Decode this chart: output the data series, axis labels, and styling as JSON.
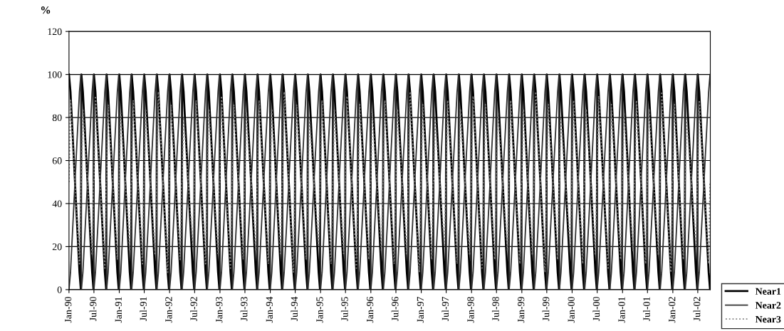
{
  "chart_data": {
    "type": "line",
    "ylabel": "%",
    "x": [
      "1990-01-01",
      "1990-01-12",
      "1990-03-18",
      "1990-03-28",
      "1990-04-01",
      "1990-04-12",
      "1990-06-18",
      "1990-06-28",
      "1990-07-01",
      "1990-07-12",
      "1990-09-18",
      "1990-09-28",
      "1990-10-01",
      "1990-10-12",
      "1990-12-18",
      "1990-12-28",
      "1991-01-01",
      "1991-01-12",
      "1991-03-18",
      "1991-03-28",
      "1991-04-01",
      "1991-04-12",
      "1991-06-18",
      "1991-06-28",
      "1991-07-01",
      "1991-07-12",
      "1991-09-18",
      "1991-09-28",
      "1991-10-01",
      "1991-10-12",
      "1991-12-18",
      "1991-12-28",
      "1992-01-01",
      "1992-01-12",
      "1992-03-18",
      "1992-03-28",
      "1992-04-01",
      "1992-04-12",
      "1992-06-18",
      "1992-06-28",
      "1992-07-01",
      "1992-07-12",
      "1992-09-18",
      "1992-09-28",
      "1992-10-01",
      "1992-10-12",
      "1992-12-18",
      "1992-12-28",
      "1993-01-01",
      "1993-01-12",
      "1993-03-18",
      "1993-03-28",
      "1993-04-01",
      "1993-04-12",
      "1993-06-18",
      "1993-06-28",
      "1993-07-01",
      "1993-07-12",
      "1993-09-18",
      "1993-09-28",
      "1993-10-01",
      "1993-10-12",
      "1993-12-18",
      "1993-12-28",
      "1994-01-01",
      "1994-01-12",
      "1994-03-18",
      "1994-03-28",
      "1994-04-01",
      "1994-04-12",
      "1994-06-18",
      "1994-06-28",
      "1994-07-01",
      "1994-07-12",
      "1994-09-18",
      "1994-09-28",
      "1994-10-01",
      "1994-10-12",
      "1994-12-18",
      "1994-12-28",
      "1995-01-01",
      "1995-01-12",
      "1995-03-18",
      "1995-03-28",
      "1995-04-01",
      "1995-04-12",
      "1995-06-18",
      "1995-06-28",
      "1995-07-01",
      "1995-07-12",
      "1995-09-18",
      "1995-09-28",
      "1995-10-01",
      "1995-10-12",
      "1995-12-18",
      "1995-12-28",
      "1996-01-01",
      "1996-01-12",
      "1996-03-18",
      "1996-03-28",
      "1996-04-01",
      "1996-04-12",
      "1996-06-18",
      "1996-06-28",
      "1996-07-01",
      "1996-07-12",
      "1996-09-18",
      "1996-09-28",
      "1996-10-01",
      "1996-10-12",
      "1996-12-18",
      "1996-12-28",
      "1997-01-01",
      "1997-01-12",
      "1997-03-18",
      "1997-03-28",
      "1997-04-01",
      "1997-04-12",
      "1997-06-18",
      "1997-06-28",
      "1997-07-01",
      "1997-07-12",
      "1997-09-18",
      "1997-09-28",
      "1997-10-01",
      "1997-10-12",
      "1997-12-18",
      "1997-12-28",
      "1998-01-01",
      "1998-01-12",
      "1998-03-18",
      "1998-03-28",
      "1998-04-01",
      "1998-04-12",
      "1998-06-18",
      "1998-06-28",
      "1998-07-01",
      "1998-07-12",
      "1998-09-18",
      "1998-09-28",
      "1998-10-01",
      "1998-10-12",
      "1998-12-18",
      "1998-12-28",
      "1999-01-01",
      "1999-01-12",
      "1999-03-18",
      "1999-03-28",
      "1999-04-01",
      "1999-04-12",
      "1999-06-18",
      "1999-06-28",
      "1999-07-01",
      "1999-07-12",
      "1999-09-18",
      "1999-09-28",
      "1999-10-01",
      "1999-10-12",
      "1999-12-18",
      "1999-12-28",
      "2000-01-01",
      "2000-01-12",
      "2000-03-18",
      "2000-03-28",
      "2000-04-01",
      "2000-04-12",
      "2000-06-18",
      "2000-06-28",
      "2000-07-01",
      "2000-07-12",
      "2000-09-18",
      "2000-09-28",
      "2000-10-01",
      "2000-10-12",
      "2000-12-18",
      "2000-12-28",
      "2001-01-01",
      "2001-01-12",
      "2001-03-18",
      "2001-03-28",
      "2001-04-01",
      "2001-04-12",
      "2001-06-18",
      "2001-06-28",
      "2001-07-01",
      "2001-07-12",
      "2001-09-18",
      "2001-09-28",
      "2001-10-01",
      "2001-10-12",
      "2001-12-18",
      "2001-12-28",
      "2002-01-01",
      "2002-01-12",
      "2002-03-18",
      "2002-03-28",
      "2002-04-01",
      "2002-04-12",
      "2002-06-18",
      "2002-06-28",
      "2002-07-01",
      "2002-07-12",
      "2002-09-18",
      "2002-09-28"
    ],
    "series": [
      {
        "name": "Near1",
        "color": "#000000",
        "line_style": "solid",
        "values": [
          100,
          92,
          8,
          0,
          100,
          92,
          8,
          0,
          100,
          92,
          8,
          0,
          100,
          92,
          8,
          0,
          100,
          92,
          8,
          0,
          100,
          92,
          8,
          0,
          100,
          92,
          8,
          0,
          100,
          92,
          8,
          0,
          100,
          92,
          8,
          0,
          100,
          92,
          8,
          0,
          100,
          92,
          8,
          0,
          100,
          92,
          8,
          0,
          100,
          92,
          8,
          0,
          100,
          92,
          8,
          0,
          100,
          92,
          8,
          0,
          100,
          92,
          8,
          0,
          100,
          92,
          8,
          0,
          100,
          92,
          8,
          0,
          100,
          92,
          8,
          0,
          100,
          92,
          8,
          0,
          100,
          92,
          8,
          0,
          100,
          92,
          8,
          0,
          100,
          92,
          8,
          0,
          100,
          92,
          8,
          0,
          100,
          92,
          8,
          0,
          100,
          92,
          8,
          0,
          100,
          92,
          8,
          0,
          100,
          92,
          8,
          0,
          100,
          92,
          8,
          0,
          100,
          92,
          8,
          0,
          100,
          92,
          8,
          0,
          100,
          92,
          8,
          0,
          100,
          92,
          8,
          0,
          100,
          92,
          8,
          0,
          100,
          92,
          8,
          0,
          100,
          92,
          8,
          0,
          100,
          92,
          8,
          0,
          100,
          92,
          8,
          0,
          100,
          92,
          8,
          0,
          100,
          92,
          8,
          0,
          100,
          92,
          8,
          0,
          100,
          92,
          8,
          0,
          100,
          92,
          8,
          0,
          100,
          92,
          8,
          0,
          100,
          92,
          8,
          0,
          100,
          92,
          8,
          0,
          100,
          92,
          8,
          0,
          100,
          92,
          8,
          0,
          100,
          92,
          8,
          0,
          100,
          92,
          8,
          0,
          100,
          92,
          8,
          0
        ]
      },
      {
        "name": "Near2",
        "color": "#303030",
        "line_style": "solid",
        "values": [
          0,
          8,
          92,
          100,
          0,
          8,
          92,
          100,
          0,
          8,
          92,
          100,
          0,
          8,
          92,
          100,
          0,
          8,
          92,
          100,
          0,
          8,
          92,
          100,
          0,
          8,
          92,
          100,
          0,
          8,
          92,
          100,
          0,
          8,
          92,
          100,
          0,
          8,
          92,
          100,
          0,
          8,
          92,
          100,
          0,
          8,
          92,
          100,
          0,
          8,
          92,
          100,
          0,
          8,
          92,
          100,
          0,
          8,
          92,
          100,
          0,
          8,
          92,
          100,
          0,
          8,
          92,
          100,
          0,
          8,
          92,
          100,
          0,
          8,
          92,
          100,
          0,
          8,
          92,
          100,
          0,
          8,
          92,
          100,
          0,
          8,
          92,
          100,
          0,
          8,
          92,
          100,
          0,
          8,
          92,
          100,
          0,
          8,
          92,
          100,
          0,
          8,
          92,
          100,
          0,
          8,
          92,
          100,
          0,
          8,
          92,
          100,
          0,
          8,
          92,
          100,
          0,
          8,
          92,
          100,
          0,
          8,
          92,
          100,
          0,
          8,
          92,
          100,
          0,
          8,
          92,
          100,
          0,
          8,
          92,
          100,
          0,
          8,
          92,
          100,
          0,
          8,
          92,
          100,
          0,
          8,
          92,
          100,
          0,
          8,
          92,
          100,
          0,
          8,
          92,
          100,
          0,
          8,
          92,
          100,
          0,
          8,
          92,
          100,
          0,
          8,
          92,
          100,
          0,
          8,
          92,
          100,
          0,
          8,
          92,
          100,
          0,
          8,
          92,
          100,
          0,
          8,
          92,
          100,
          0,
          8,
          92,
          100,
          0,
          8,
          92,
          100,
          0,
          8,
          92,
          100,
          0,
          8,
          92,
          100,
          0,
          8,
          92,
          100
        ]
      },
      {
        "name": "Near3",
        "color": "#808080",
        "line_style": "dotted",
        "values": [
          50,
          88,
          12,
          50,
          50,
          84,
          16,
          50,
          50,
          90,
          10,
          50,
          50,
          86,
          14,
          50,
          50,
          82,
          18,
          50,
          50,
          88,
          12,
          50,
          50,
          84,
          16,
          50,
          50,
          92,
          8,
          50,
          50,
          86,
          14,
          50,
          50,
          80,
          20,
          50,
          50,
          88,
          12,
          50,
          50,
          84,
          16,
          50,
          50,
          90,
          10,
          50,
          50,
          86,
          14,
          50,
          50,
          82,
          18,
          50,
          50,
          88,
          12,
          50,
          50,
          84,
          16,
          50,
          50,
          92,
          8,
          50,
          50,
          86,
          14,
          50,
          50,
          80,
          20,
          50,
          50,
          88,
          12,
          50,
          50,
          84,
          16,
          50,
          50,
          90,
          10,
          50,
          50,
          86,
          14,
          50,
          50,
          82,
          18,
          50,
          50,
          88,
          12,
          50,
          50,
          84,
          16,
          50,
          50,
          92,
          8,
          50,
          50,
          86,
          14,
          50,
          50,
          80,
          20,
          50,
          50,
          88,
          12,
          50,
          50,
          84,
          16,
          50,
          50,
          90,
          10,
          50,
          50,
          86,
          14,
          50,
          50,
          82,
          18,
          50,
          50,
          88,
          12,
          50,
          50,
          84,
          16,
          50,
          50,
          92,
          8,
          50,
          50,
          86,
          14,
          50,
          50,
          80,
          20,
          50,
          50,
          88,
          12,
          50,
          50,
          84,
          16,
          50,
          50,
          90,
          10,
          50,
          50,
          86,
          14,
          50,
          50,
          82,
          18,
          50,
          50,
          88,
          12,
          50,
          50,
          84,
          16,
          50,
          50,
          92,
          8,
          50,
          50,
          86,
          14,
          50,
          50,
          80,
          20,
          50,
          50,
          88,
          12,
          50
        ]
      }
    ],
    "xlim": [
      "1990-01-01",
      "2002-09-30"
    ],
    "xticks": [
      {
        "value": "1990-01-01",
        "label": "Jan-90"
      },
      {
        "value": "1990-07-01",
        "label": "Jul-90"
      },
      {
        "value": "1991-01-01",
        "label": "Jan-91"
      },
      {
        "value": "1991-07-01",
        "label": "Jul-91"
      },
      {
        "value": "1992-01-01",
        "label": "Jan-92"
      },
      {
        "value": "1992-07-01",
        "label": "Jul-92"
      },
      {
        "value": "1993-01-01",
        "label": "Jan-93"
      },
      {
        "value": "1993-07-01",
        "label": "Jul-93"
      },
      {
        "value": "1994-01-01",
        "label": "Jan-94"
      },
      {
        "value": "1994-07-01",
        "label": "Jul-94"
      },
      {
        "value": "1995-01-01",
        "label": "Jan-95"
      },
      {
        "value": "1995-07-01",
        "label": "Jul-95"
      },
      {
        "value": "1996-01-01",
        "label": "Jan-96"
      },
      {
        "value": "1996-07-01",
        "label": "Jul-96"
      },
      {
        "value": "1997-01-01",
        "label": "Jan-97"
      },
      {
        "value": "1997-07-01",
        "label": "Jul-97"
      },
      {
        "value": "1998-01-01",
        "label": "Jan-98"
      },
      {
        "value": "1998-07-01",
        "label": "Jul-98"
      },
      {
        "value": "1999-01-01",
        "label": "Jan-99"
      },
      {
        "value": "1999-07-01",
        "label": "Jul-99"
      },
      {
        "value": "2000-01-01",
        "label": "Jan-00"
      },
      {
        "value": "2000-07-01",
        "label": "Jul-00"
      },
      {
        "value": "2001-01-01",
        "label": "Jan-01"
      },
      {
        "value": "2001-07-01",
        "label": "Jul-01"
      },
      {
        "value": "2002-01-01",
        "label": "Jan-02"
      },
      {
        "value": "2002-07-01",
        "label": "Jul-02"
      }
    ],
    "ylim": [
      0,
      120
    ],
    "yticks": [
      0,
      20,
      40,
      60,
      80,
      100,
      120
    ],
    "grid": "y",
    "legend": "bottom right"
  }
}
